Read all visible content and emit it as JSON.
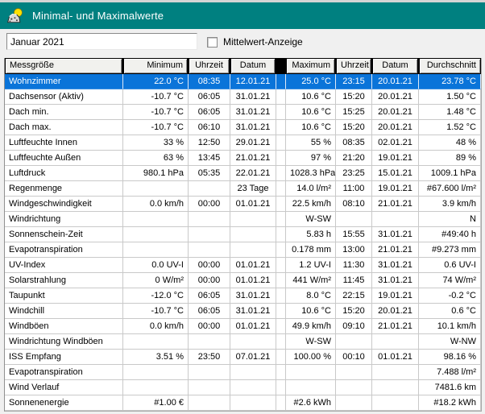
{
  "window": {
    "title": "Minimal- und Maximalwerte"
  },
  "controls": {
    "period_value": "Januar 2021",
    "mittelwert_label": "Mittelwert-Anzeige",
    "mittelwert_checked": false
  },
  "colors": {
    "titlebar": "#008080",
    "selection": "#0a74d9",
    "header_bg": "#f1f1ee",
    "grid_line": "#c9c9c9"
  },
  "table": {
    "columns": [
      "Messgröße",
      "Minimum",
      "Uhrzeit",
      "Datum",
      "Maximum",
      "Uhrzeit",
      "Datum",
      "Durchschnitt"
    ],
    "rows": [
      {
        "name": "Wohnzimmer",
        "min": "22.0 °C",
        "min_time": "08:35",
        "min_date": "12.01.21",
        "max": "25.0 °C",
        "max_time": "23:15",
        "max_date": "20.01.21",
        "avg": "23.78 °C",
        "selected": true
      },
      {
        "name": "Dachsensor (Aktiv)",
        "min": "-10.7 °C",
        "min_time": "06:05",
        "min_date": "31.01.21",
        "max": "10.6 °C",
        "max_time": "15:20",
        "max_date": "20.01.21",
        "avg": "1.50 °C",
        "selected": false
      },
      {
        "name": "Dach min.",
        "min": "-10.7 °C",
        "min_time": "06:05",
        "min_date": "31.01.21",
        "max": "10.6 °C",
        "max_time": "15:25",
        "max_date": "20.01.21",
        "avg": "1.48 °C",
        "selected": false
      },
      {
        "name": "Dach max.",
        "min": "-10.7 °C",
        "min_time": "06:10",
        "min_date": "31.01.21",
        "max": "10.6 °C",
        "max_time": "15:20",
        "max_date": "20.01.21",
        "avg": "1.52 °C",
        "selected": false
      },
      {
        "name": "Luftfeuchte Innen",
        "min": "33 %",
        "min_time": "12:50",
        "min_date": "29.01.21",
        "max": "55 %",
        "max_time": "08:35",
        "max_date": "02.01.21",
        "avg": "48 %",
        "selected": false
      },
      {
        "name": "Luftfeuchte Außen",
        "min": "63 %",
        "min_time": "13:45",
        "min_date": "21.01.21",
        "max": "97 %",
        "max_time": "21:20",
        "max_date": "19.01.21",
        "avg": "89 %",
        "selected": false
      },
      {
        "name": "Luftdruck",
        "min": "980.1 hPa",
        "min_time": "05:35",
        "min_date": "22.01.21",
        "max": "1028.3 hPa",
        "max_time": "23:25",
        "max_date": "15.01.21",
        "avg": "1009.1 hPa",
        "selected": false
      },
      {
        "name": "Regenmenge",
        "min": "",
        "min_time": "",
        "min_date": "23 Tage",
        "max": "14.0 l/m²",
        "max_time": "11:00",
        "max_date": "19.01.21",
        "avg": "#67.600 l/m²",
        "selected": false
      },
      {
        "name": "Windgeschwindigkeit",
        "min": "0.0 km/h",
        "min_time": "00:00",
        "min_date": "01.01.21",
        "max": "22.5 km/h",
        "max_time": "08:10",
        "max_date": "21.01.21",
        "avg": "3.9 km/h",
        "selected": false
      },
      {
        "name": "Windrichtung",
        "min": "",
        "min_time": "",
        "min_date": "",
        "max": "W-SW",
        "max_time": "",
        "max_date": "",
        "avg": "N",
        "selected": false
      },
      {
        "name": "Sonnenschein-Zeit",
        "min": "",
        "min_time": "",
        "min_date": "",
        "max": "5.83 h",
        "max_time": "15:55",
        "max_date": "31.01.21",
        "avg": "#49:40 h",
        "selected": false
      },
      {
        "name": "Evapotranspiration",
        "min": "",
        "min_time": "",
        "min_date": "",
        "max": "0.178 mm",
        "max_time": "13:00",
        "max_date": "21.01.21",
        "avg": "#9.273 mm",
        "selected": false
      },
      {
        "name": "UV-Index",
        "min": "0.0 UV-I",
        "min_time": "00:00",
        "min_date": "01.01.21",
        "max": "1.2 UV-I",
        "max_time": "11:30",
        "max_date": "31.01.21",
        "avg": "0.6 UV-I",
        "selected": false
      },
      {
        "name": "Solarstrahlung",
        "min": "0 W/m²",
        "min_time": "00:00",
        "min_date": "01.01.21",
        "max": "441 W/m²",
        "max_time": "11:45",
        "max_date": "31.01.21",
        "avg": "74 W/m²",
        "selected": false
      },
      {
        "name": "Taupunkt",
        "min": "-12.0 °C",
        "min_time": "06:05",
        "min_date": "31.01.21",
        "max": "8.0 °C",
        "max_time": "22:15",
        "max_date": "19.01.21",
        "avg": "-0.2 °C",
        "selected": false
      },
      {
        "name": "Windchill",
        "min": "-10.7 °C",
        "min_time": "06:05",
        "min_date": "31.01.21",
        "max": "10.6 °C",
        "max_time": "15:20",
        "max_date": "20.01.21",
        "avg": "0.6 °C",
        "selected": false
      },
      {
        "name": "Windböen",
        "min": "0.0 km/h",
        "min_time": "00:00",
        "min_date": "01.01.21",
        "max": "49.9 km/h",
        "max_time": "09:10",
        "max_date": "21.01.21",
        "avg": "10.1 km/h",
        "selected": false
      },
      {
        "name": "Windrichtung Windböen",
        "min": "",
        "min_time": "",
        "min_date": "",
        "max": "W-SW",
        "max_time": "",
        "max_date": "",
        "avg": "W-NW",
        "selected": false
      },
      {
        "name": "ISS Empfang",
        "min": "3.51 %",
        "min_time": "23:50",
        "min_date": "07.01.21",
        "max": "100.00 %",
        "max_time": "00:10",
        "max_date": "01.01.21",
        "avg": "98.16 %",
        "selected": false
      },
      {
        "name": "Evapotranspiration",
        "min": "",
        "min_time": "",
        "min_date": "",
        "max": "",
        "max_time": "",
        "max_date": "",
        "avg": "7.488 l/m²",
        "selected": false
      },
      {
        "name": "Wind Verlauf",
        "min": "",
        "min_time": "",
        "min_date": "",
        "max": "",
        "max_time": "",
        "max_date": "",
        "avg": "7481.6 km",
        "selected": false
      },
      {
        "name": "Sonnenenergie",
        "min": "#1.00 €",
        "min_time": "",
        "min_date": "",
        "max": "#2.6 kWh",
        "max_time": "",
        "max_date": "",
        "avg": "#18.2 kWh",
        "selected": false
      }
    ]
  }
}
